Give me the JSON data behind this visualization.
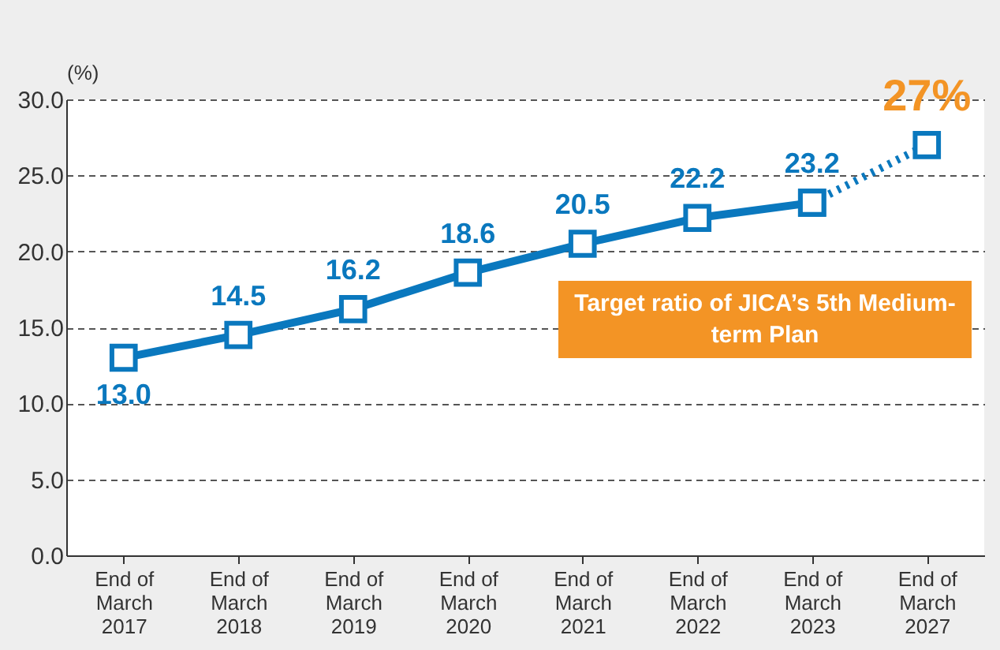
{
  "chart_data": {
    "type": "line",
    "ylabel": "(%)",
    "categories": [
      "End of March 2017",
      "End of March 2018",
      "End of March 2019",
      "End of March 2020",
      "End of March 2021",
      "End of March 2022",
      "End of March 2023",
      "End of March 2027"
    ],
    "series": [
      {
        "color": "#0a78be",
        "values": [
          13.0,
          14.5,
          16.2,
          18.6,
          20.5,
          22.2,
          23.2,
          null
        ],
        "line_style": "solid",
        "value_labels": [
          "13.0",
          "14.5",
          "16.2",
          "18.6",
          "20.5",
          "22.2",
          "23.2",
          null
        ]
      },
      {
        "color": "#0a78be",
        "values": [
          null,
          null,
          null,
          null,
          null,
          null,
          23.2,
          27
        ],
        "line_style": "dotted"
      }
    ],
    "ylim": [
      0,
      30
    ],
    "yticks": [
      {
        "value": 0,
        "label": "0.0"
      },
      {
        "value": 5,
        "label": "5.0"
      },
      {
        "value": 10,
        "label": "10.0"
      },
      {
        "value": 15,
        "label": "15.0"
      },
      {
        "value": 20,
        "label": "20.0"
      },
      {
        "value": 25,
        "label": "25.0"
      },
      {
        "value": 30,
        "label": "30.0"
      }
    ],
    "grid": "y",
    "marker": "square",
    "annotations": [
      {
        "text": "27%",
        "x": "End of March 2027",
        "y": 27
      },
      "Target ratio of JICA’s 5th Medium-term Plan"
    ]
  }
}
